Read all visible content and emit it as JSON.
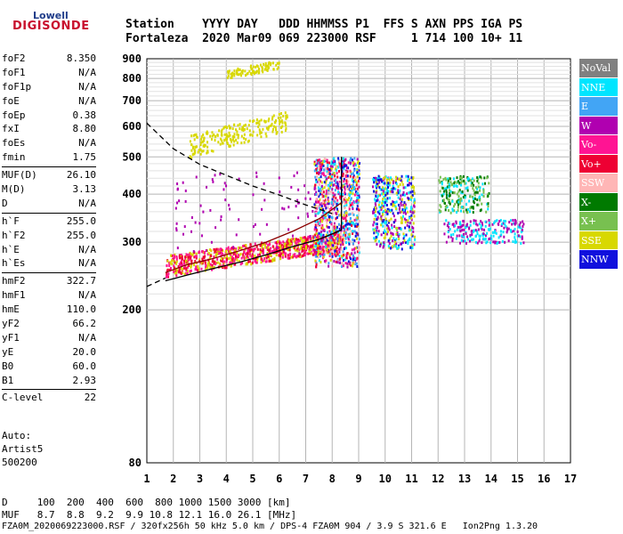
{
  "logo": {
    "line1": "Lowell",
    "line2": "DIGISONDE"
  },
  "header": {
    "row1": "Station    YYYY DAY   DDD HHMMSS P1  FFS S AXN PPS IGA PS",
    "row2": "Fortaleza  2020 Mar09 069 223000 RSF     1 714 100 10+ 11"
  },
  "params": [
    [
      {
        "k": "foF2",
        "v": "8.350"
      },
      {
        "k": "foF1",
        "v": "N/A"
      },
      {
        "k": "foF1p",
        "v": "N/A"
      },
      {
        "k": "foE",
        "v": "N/A"
      },
      {
        "k": "foEp",
        "v": "0.38"
      },
      {
        "k": "fxI",
        "v": "8.80"
      },
      {
        "k": "foEs",
        "v": "N/A"
      },
      {
        "k": "fmin",
        "v": "1.75"
      }
    ],
    [
      {
        "k": "MUF(D)",
        "v": "26.10"
      },
      {
        "k": "M(D)",
        "v": "3.13"
      },
      {
        "k": "D",
        "v": "N/A"
      }
    ],
    [
      {
        "k": "h`F",
        "v": "255.0"
      },
      {
        "k": "h`F2",
        "v": "255.0"
      },
      {
        "k": "h`E",
        "v": "N/A"
      },
      {
        "k": "h`Es",
        "v": "N/A"
      }
    ],
    [
      {
        "k": "hmF2",
        "v": "322.7"
      },
      {
        "k": "hmF1",
        "v": "N/A"
      },
      {
        "k": "hmE",
        "v": "110.0"
      },
      {
        "k": "yF2",
        "v": "66.2"
      },
      {
        "k": "yF1",
        "v": "N/A"
      },
      {
        "k": "yE",
        "v": "20.0"
      },
      {
        "k": "B0",
        "v": "60.0"
      },
      {
        "k": "B1",
        "v": "2.93"
      }
    ],
    [
      {
        "k": "C-level",
        "v": "22"
      }
    ]
  ],
  "auto": {
    "l1": "Auto:",
    "l2": "Artist5",
    "l3": "500200"
  },
  "legend": [
    {
      "label": "NoVal",
      "color": "#808080"
    },
    {
      "label": "NNE",
      "color": "#00e5ff"
    },
    {
      "label": "E",
      "color": "#42a5f5"
    },
    {
      "label": "W",
      "color": "#b000b0"
    },
    {
      "label": "Vo-",
      "color": "#ff1493"
    },
    {
      "label": "Vo+",
      "color": "#ee0033"
    },
    {
      "label": "SSW",
      "color": "#ffb6b6"
    },
    {
      "label": "X-",
      "color": "#007a00"
    },
    {
      "label": "X+",
      "color": "#78c050"
    },
    {
      "label": "SSE",
      "color": "#d8d800"
    },
    {
      "label": "NNW",
      "color": "#1010dd"
    }
  ],
  "footer": {
    "row_d": "D     100  200  400  600  800 1000 1500 3000 [km]",
    "row_muf": "MUF   8.7  8.8  9.2  9.9 10.8 12.1 16.0 26.1 [MHz]",
    "filename": "FZA0M_2020069223000.RSF / 320fx256h 50 kHz 5.0 km / DPS-4 FZA0M 904 / 3.9 S 321.6 E   Ion2Png 1.3.20"
  },
  "chart_data": {
    "type": "scatter",
    "title": "",
    "xlabel": "",
    "ylabel": "",
    "x_scale": "linear",
    "y_scale": "log",
    "xlim": [
      1,
      17
    ],
    "ylim": [
      80,
      900
    ],
    "x_ticks": [
      "1",
      "2",
      "3",
      "4",
      "5",
      "6",
      "7",
      "8",
      "9",
      "10",
      "11",
      "12",
      "13",
      "14",
      "15",
      "16",
      "17"
    ],
    "y_ticks": [
      "900",
      "800",
      "700",
      "600",
      "500",
      "400",
      "300",
      "200",
      "80"
    ],
    "grid": true,
    "curves": [
      {
        "kind": "profile",
        "points": [
          [
            1.7,
            238
          ],
          [
            2.5,
            246
          ],
          [
            3.5,
            256
          ],
          [
            4.5,
            266
          ],
          [
            5.5,
            278
          ],
          [
            6.5,
            292
          ],
          [
            7.5,
            305
          ],
          [
            8.35,
            322.7
          ],
          [
            8.35,
            500
          ]
        ]
      },
      {
        "kind": "trace",
        "points": [
          [
            1.7,
            250
          ],
          [
            2.5,
            262
          ],
          [
            3.5,
            272
          ],
          [
            4.5,
            285
          ],
          [
            5.5,
            300
          ],
          [
            6.5,
            320
          ],
          [
            7.5,
            345
          ],
          [
            8.35,
            380
          ]
        ]
      },
      {
        "kind": "dashed",
        "points": [
          [
            1.0,
            612
          ],
          [
            2.0,
            525
          ],
          [
            3.0,
            478
          ],
          [
            4.0,
            448
          ],
          [
            5.0,
            420
          ],
          [
            6.0,
            398
          ],
          [
            7.0,
            375
          ],
          [
            8.0,
            356
          ]
        ]
      },
      {
        "kind": "dashed-lower",
        "points": [
          [
            1.0,
            230
          ],
          [
            1.7,
            242
          ]
        ]
      }
    ],
    "echo_clusters": [
      {
        "x": [
          1.7,
          8.3
        ],
        "y": [
          245,
          320
        ],
        "density": "very high",
        "dominant": "Vo-/Vo+/SSE",
        "trend": "rising"
      },
      {
        "x": [
          7.3,
          9.0
        ],
        "y": [
          260,
          500
        ],
        "density": "very high",
        "dominant": "mixed",
        "trend": "none"
      },
      {
        "x": [
          9.5,
          11.1
        ],
        "y": [
          290,
          450
        ],
        "density": "high",
        "dominant": "NNE/W/NNW/SSE",
        "trend": "none"
      },
      {
        "x": [
          12.0,
          13.9
        ],
        "y": [
          360,
          450
        ],
        "density": "medium",
        "dominant": "X-/X+/NNE",
        "trend": "none"
      },
      {
        "x": [
          12.2,
          15.2
        ],
        "y": [
          300,
          345
        ],
        "density": "medium",
        "dominant": "NNE/W",
        "trend": "none"
      },
      {
        "x": [
          2.6,
          6.3
        ],
        "y": [
          500,
          660
        ],
        "density": "medium",
        "dominant": "SSE",
        "trend": "rising"
      },
      {
        "x": [
          2.0,
          7.8
        ],
        "y": [
          280,
          460
        ],
        "density": "low",
        "dominant": "W",
        "trend": "none"
      },
      {
        "x": [
          4.0,
          6.0
        ],
        "y": [
          800,
          900
        ],
        "density": "low",
        "dominant": "SSE",
        "trend": "rising"
      }
    ]
  }
}
